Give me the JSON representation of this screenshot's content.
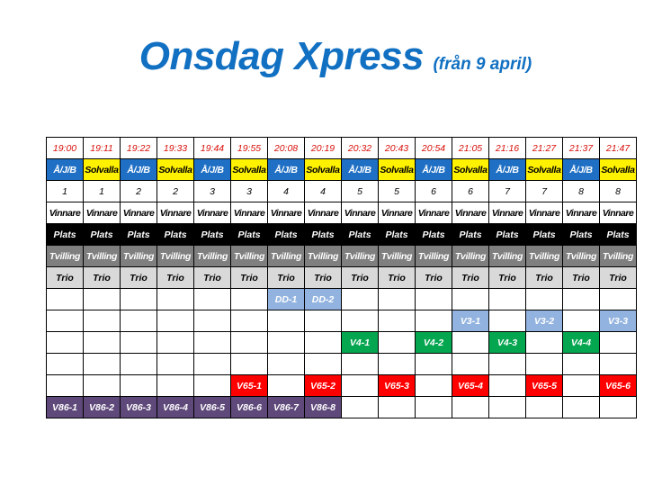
{
  "title": {
    "main": "Onsdag Xpress",
    "sub": "(från 9 april)"
  },
  "colors": {
    "title": "#1170c2",
    "time": "#d8100a",
    "aj_b": "#1f6fc4",
    "solvalla": "#fff200",
    "plats": "#000000",
    "tvilling": "#7f7f7f",
    "trio": "#d9d9d9",
    "dd": "#92b3df",
    "v3": "#92b3df",
    "v4": "#05a650",
    "v65": "#ff0000",
    "v86": "#5f497a"
  },
  "columns": [
    {
      "time": "19:00",
      "track": "Å/J/B",
      "race": "1"
    },
    {
      "time": "19:11",
      "track": "Solvalla",
      "race": "1"
    },
    {
      "time": "19:22",
      "track": "Å/J/B",
      "race": "2"
    },
    {
      "time": "19:33",
      "track": "Solvalla",
      "race": "2"
    },
    {
      "time": "19:44",
      "track": "Å/J/B",
      "race": "3"
    },
    {
      "time": "19:55",
      "track": "Solvalla",
      "race": "3"
    },
    {
      "time": "20:08",
      "track": "Å/J/B",
      "race": "4"
    },
    {
      "time": "20:19",
      "track": "Solvalla",
      "race": "4"
    },
    {
      "time": "20:32",
      "track": "Å/J/B",
      "race": "5"
    },
    {
      "time": "20:43",
      "track": "Solvalla",
      "race": "5"
    },
    {
      "time": "20:54",
      "track": "Å/J/B",
      "race": "6"
    },
    {
      "time": "21:05",
      "track": "Solvalla",
      "race": "6"
    },
    {
      "time": "21:16",
      "track": "Å/J/B",
      "race": "7"
    },
    {
      "time": "21:27",
      "track": "Solvalla",
      "race": "7"
    },
    {
      "time": "21:37",
      "track": "Å/J/B",
      "race": "8"
    },
    {
      "time": "21:47",
      "track": "Solvalla",
      "race": "8"
    }
  ],
  "bet_types": {
    "vinnare": "Vinnare",
    "plats": "Plats",
    "tvilling": "Tvilling",
    "trio": "Trio"
  },
  "game_rows": [
    {
      "type": "dd",
      "cells": [
        "",
        "",
        "",
        "",
        "",
        "",
        "DD-1",
        "DD-2",
        "",
        "",
        "",
        "",
        "",
        "",
        "",
        ""
      ]
    },
    {
      "type": "v3",
      "cells": [
        "",
        "",
        "",
        "",
        "",
        "",
        "",
        "",
        "",
        "",
        "",
        "V3-1",
        "",
        "V3-2",
        "",
        "V3-3"
      ]
    },
    {
      "type": "v4",
      "cells": [
        "",
        "",
        "",
        "",
        "",
        "",
        "",
        "",
        "V4-1",
        "",
        "V4-2",
        "",
        "V4-3",
        "",
        "V4-4",
        ""
      ]
    },
    {
      "type": "empty",
      "cells": [
        "",
        "",
        "",
        "",
        "",
        "",
        "",
        "",
        "",
        "",
        "",
        "",
        "",
        "",
        "",
        ""
      ]
    },
    {
      "type": "v65",
      "cells": [
        "",
        "",
        "",
        "",
        "",
        "V65-1",
        "",
        "V65-2",
        "",
        "V65-3",
        "",
        "V65-4",
        "",
        "V65-5",
        "",
        "V65-6"
      ]
    },
    {
      "type": "v86",
      "cells": [
        "V86-1",
        "V86-2",
        "V86-3",
        "V86-4",
        "V86-5",
        "V86-6",
        "V86-7",
        "V86-8",
        "",
        "",
        "",
        "",
        "",
        "",
        "",
        ""
      ]
    }
  ]
}
